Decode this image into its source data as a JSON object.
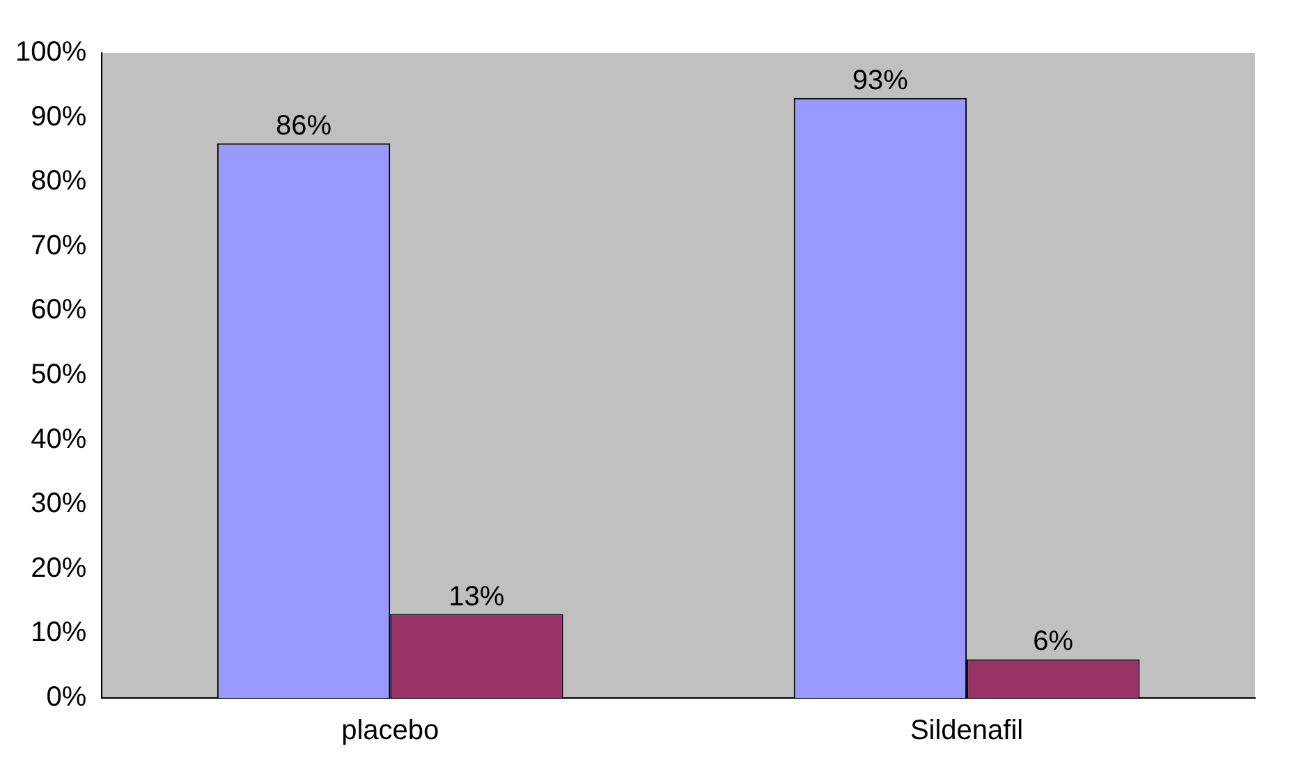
{
  "chart_data": {
    "type": "bar",
    "categories": [
      "placebo",
      "Sildenafil"
    ],
    "series": [
      {
        "color": "#9999ff",
        "values": [
          86,
          93
        ],
        "value_labels": [
          "86%",
          "93%"
        ]
      },
      {
        "color": "#993366",
        "values": [
          13,
          6
        ],
        "value_labels": [
          "13%",
          "6%"
        ]
      }
    ],
    "ylim": [
      0,
      100
    ],
    "yticks": [
      {
        "value": 0,
        "label": "0%"
      },
      {
        "value": 10,
        "label": "10%"
      },
      {
        "value": 20,
        "label": "20%"
      },
      {
        "value": 30,
        "label": "30%"
      },
      {
        "value": 40,
        "label": "40%"
      },
      {
        "value": 50,
        "label": "50%"
      },
      {
        "value": 60,
        "label": "60%"
      },
      {
        "value": 70,
        "label": "70%"
      },
      {
        "value": 80,
        "label": "80%"
      },
      {
        "value": 90,
        "label": "90%"
      },
      {
        "value": 100,
        "label": "100%"
      }
    ],
    "grid": false,
    "legend": false
  }
}
